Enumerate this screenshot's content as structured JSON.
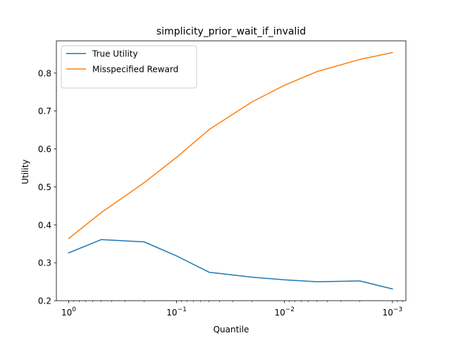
{
  "chart_data": {
    "type": "line",
    "title": "simplicity_prior_wait_if_invalid",
    "xlabel": "Quantile",
    "ylabel": "Utility",
    "xscale": "log",
    "x_inverted": true,
    "xlim": [
      1.3,
      0.00075
    ],
    "ylim": [
      0.2,
      0.885
    ],
    "x": [
      1,
      0.5,
      0.2,
      0.1,
      0.05,
      0.02,
      0.01,
      0.005,
      0.002,
      0.001
    ],
    "xticks": [
      1,
      0.1,
      0.01,
      0.001
    ],
    "xtick_labels": [
      {
        "base": "10",
        "exp": "0"
      },
      {
        "base": "10",
        "exp": "−1"
      },
      {
        "base": "10",
        "exp": "−2"
      },
      {
        "base": "10",
        "exp": "−3"
      }
    ],
    "yticks": [
      0.2,
      0.3,
      0.4,
      0.5,
      0.6,
      0.7,
      0.8
    ],
    "ytick_labels": [
      "0.2",
      "0.3",
      "0.4",
      "0.5",
      "0.6",
      "0.7",
      "0.8"
    ],
    "legend_position": "upper-left",
    "grid": false,
    "series": [
      {
        "name": "True Utility",
        "color": "#1f77b4",
        "values": [
          0.326,
          0.361,
          0.355,
          0.318,
          0.275,
          0.262,
          0.255,
          0.25,
          0.252,
          0.231
        ]
      },
      {
        "name": "Misspecified Reward",
        "color": "#ff7f0e",
        "values": [
          0.364,
          0.432,
          0.511,
          0.578,
          0.651,
          0.724,
          0.768,
          0.804,
          0.836,
          0.854
        ]
      }
    ]
  }
}
